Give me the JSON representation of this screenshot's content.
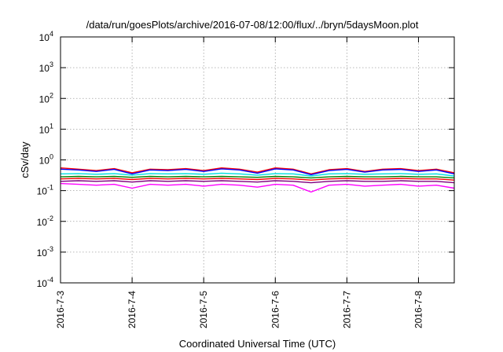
{
  "chart_data": {
    "type": "line",
    "title": "/data/run/goesPlots/archive/2016-07-08/12:00/flux/../bryn/5daysMoon.plot",
    "xlabel": "Coordinated Universal Time (UTC)",
    "ylabel": "cSv/day",
    "yscale": "log",
    "ylim": [
      0.0001,
      10000
    ],
    "xlim_days": [
      0,
      5.5
    ],
    "grid": true,
    "legend": "none",
    "x_ticks": [
      {
        "label": "2016-7-3",
        "day": 0
      },
      {
        "label": "2016-7-4",
        "day": 1
      },
      {
        "label": "2016-7-5",
        "day": 2
      },
      {
        "label": "2016-7-6",
        "day": 3
      },
      {
        "label": "2016-7-7",
        "day": 4
      },
      {
        "label": "2016-7-8",
        "day": 5
      }
    ],
    "y_ticks": [
      {
        "base": "10",
        "exp": "-4",
        "value": 0.0001
      },
      {
        "base": "10",
        "exp": "-3",
        "value": 0.001
      },
      {
        "base": "10",
        "exp": "-2",
        "value": 0.01
      },
      {
        "base": "10",
        "exp": "-1",
        "value": 0.1
      },
      {
        "base": "10",
        "exp": "0",
        "value": 1
      },
      {
        "base": "10",
        "exp": "1",
        "value": 10
      },
      {
        "base": "10",
        "exp": "2",
        "value": 100
      },
      {
        "base": "10",
        "exp": "3",
        "value": 1000
      },
      {
        "base": "10",
        "exp": "4",
        "value": 10000
      }
    ],
    "series": [
      {
        "color": "#ff00ff",
        "x_days": [
          0,
          0.25,
          0.5,
          0.75,
          1.0,
          1.25,
          1.5,
          1.75,
          2.0,
          2.25,
          2.5,
          2.75,
          3.0,
          3.25,
          3.5,
          3.75,
          4.0,
          4.25,
          4.5,
          4.75,
          5.0,
          5.25,
          5.5
        ],
        "values": [
          0.17,
          0.16,
          0.15,
          0.16,
          0.12,
          0.16,
          0.15,
          0.16,
          0.14,
          0.16,
          0.15,
          0.13,
          0.16,
          0.15,
          0.09,
          0.15,
          0.16,
          0.14,
          0.15,
          0.16,
          0.14,
          0.15,
          0.12
        ]
      },
      {
        "color": "#800080",
        "x_days": [
          0,
          0.25,
          0.5,
          0.75,
          1.0,
          1.25,
          1.5,
          1.75,
          2.0,
          2.25,
          2.5,
          2.75,
          3.0,
          3.25,
          3.5,
          3.75,
          4.0,
          4.25,
          4.5,
          4.75,
          5.0,
          5.25,
          5.5
        ],
        "values": [
          0.2,
          0.21,
          0.2,
          0.21,
          0.19,
          0.21,
          0.2,
          0.21,
          0.2,
          0.21,
          0.2,
          0.19,
          0.21,
          0.2,
          0.18,
          0.2,
          0.21,
          0.2,
          0.2,
          0.21,
          0.2,
          0.2,
          0.18
        ]
      },
      {
        "color": "#ff0000",
        "x_days": [
          0,
          0.25,
          0.5,
          0.75,
          1.0,
          1.25,
          1.5,
          1.75,
          2.0,
          2.25,
          2.5,
          2.75,
          3.0,
          3.25,
          3.5,
          3.75,
          4.0,
          4.25,
          4.5,
          4.75,
          5.0,
          5.25,
          5.5
        ],
        "values": [
          0.24,
          0.25,
          0.24,
          0.25,
          0.23,
          0.25,
          0.24,
          0.25,
          0.24,
          0.25,
          0.24,
          0.23,
          0.25,
          0.24,
          0.22,
          0.24,
          0.25,
          0.24,
          0.24,
          0.25,
          0.24,
          0.24,
          0.22
        ]
      },
      {
        "color": "#008000",
        "x_days": [
          0,
          0.25,
          0.5,
          0.75,
          1.0,
          1.25,
          1.5,
          1.75,
          2.0,
          2.25,
          2.5,
          2.75,
          3.0,
          3.25,
          3.5,
          3.75,
          4.0,
          4.25,
          4.5,
          4.75,
          5.0,
          5.25,
          5.5
        ],
        "values": [
          0.28,
          0.29,
          0.28,
          0.29,
          0.27,
          0.29,
          0.28,
          0.29,
          0.28,
          0.29,
          0.28,
          0.27,
          0.29,
          0.28,
          0.26,
          0.28,
          0.29,
          0.28,
          0.28,
          0.29,
          0.28,
          0.28,
          0.26
        ]
      },
      {
        "color": "#00e0e0",
        "x_days": [
          0,
          0.25,
          0.5,
          0.75,
          1.0,
          1.25,
          1.5,
          1.75,
          2.0,
          2.25,
          2.5,
          2.75,
          3.0,
          3.25,
          3.5,
          3.75,
          4.0,
          4.25,
          4.5,
          4.75,
          5.0,
          5.25,
          5.5
        ],
        "values": [
          0.35,
          0.36,
          0.34,
          0.36,
          0.32,
          0.36,
          0.35,
          0.36,
          0.34,
          0.37,
          0.35,
          0.32,
          0.36,
          0.35,
          0.3,
          0.35,
          0.36,
          0.34,
          0.35,
          0.36,
          0.34,
          0.35,
          0.3
        ]
      },
      {
        "color": "#ff0000",
        "x_days": [
          0,
          0.25,
          0.5,
          0.75,
          1.0,
          1.25,
          1.5,
          1.75,
          2.0,
          2.25,
          2.5,
          2.75,
          3.0,
          3.25,
          3.5,
          3.75,
          4.0,
          4.25,
          4.5,
          4.75,
          5.0,
          5.25,
          5.5
        ],
        "values": [
          0.55,
          0.5,
          0.45,
          0.52,
          0.38,
          0.5,
          0.48,
          0.52,
          0.45,
          0.55,
          0.5,
          0.4,
          0.55,
          0.5,
          0.35,
          0.48,
          0.52,
          0.42,
          0.5,
          0.52,
          0.45,
          0.5,
          0.38
        ]
      },
      {
        "color": "#0000ff",
        "x_days": [
          0,
          0.25,
          0.5,
          0.75,
          1.0,
          1.25,
          1.5,
          1.75,
          2.0,
          2.25,
          2.5,
          2.75,
          3.0,
          3.25,
          3.5,
          3.75,
          4.0,
          4.25,
          4.5,
          4.75,
          5.0,
          5.25,
          5.5
        ],
        "values": [
          0.5,
          0.47,
          0.42,
          0.49,
          0.35,
          0.47,
          0.45,
          0.49,
          0.42,
          0.51,
          0.47,
          0.37,
          0.51,
          0.47,
          0.33,
          0.45,
          0.49,
          0.4,
          0.47,
          0.49,
          0.42,
          0.47,
          0.35
        ]
      }
    ]
  }
}
